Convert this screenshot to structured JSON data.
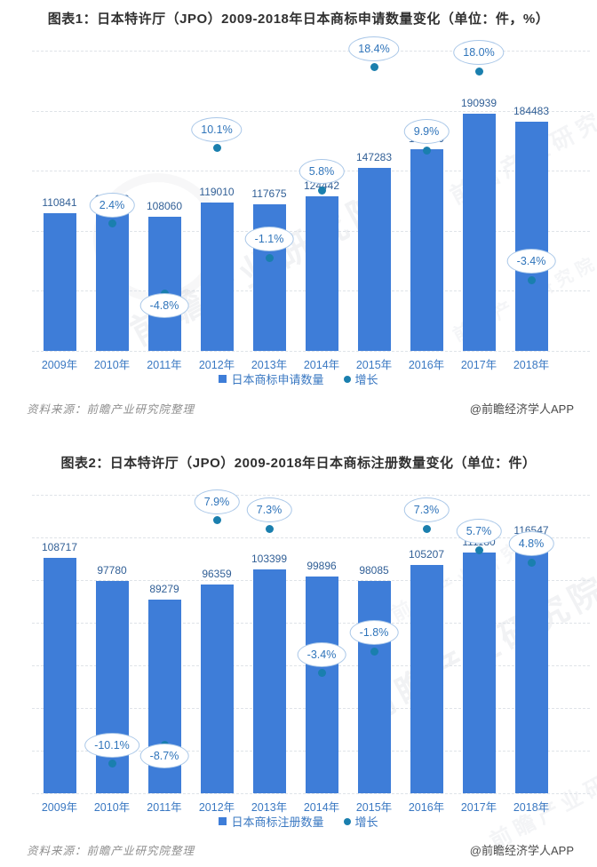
{
  "watermark": {
    "text": "前瞻产业研究院"
  },
  "colors": {
    "bar": "#3e7dd8",
    "growth_dot": "#1a7fae",
    "bubble_border": "#a9c7e8",
    "bubble_text": "#2f74ba",
    "value_label": "#315f96",
    "axis_label": "#3a78c2",
    "gridline": "#dfe3e8",
    "title": "#303030"
  },
  "chart_data": [
    {
      "type": "bar",
      "title": "图表1：日本特许厅（JPO）2009-2018年日本商标申请数量变化（单位：件，%）",
      "categories": [
        "2009年",
        "2010年",
        "2011年",
        "2012年",
        "2013年",
        "2014年",
        "2015年",
        "2016年",
        "2017年",
        "2018年"
      ],
      "series": [
        {
          "name": "日本商标申请数量",
          "type": "bar",
          "unit": "件",
          "values": [
            110841,
            113519,
            108060,
            119010,
            117675,
            124442,
            147283,
            161859,
            190939,
            184483
          ]
        },
        {
          "name": "增长",
          "type": "scatter",
          "unit": "%",
          "values": [
            null,
            2.4,
            -4.8,
            10.1,
            -1.1,
            5.8,
            18.4,
            9.9,
            18.0,
            -3.4
          ],
          "labels": [
            "",
            "2.4%",
            "-4.8%",
            "10.1%",
            "-1.1%",
            "5.8%",
            "18.4%",
            "9.9%",
            "18.0%",
            "-3.4%"
          ]
        }
      ],
      "grid": true,
      "legend_position": "bottom",
      "value_axis_labels_visible": false,
      "label_below_dot_indices": [
        2
      ],
      "source": "资料来源：前瞻产业研究院整理",
      "credit": "@前瞻经济学人APP"
    },
    {
      "type": "bar",
      "title": "图表2：日本特许厅（JPO）2009-2018年日本商标注册数量变化（单位：件）",
      "categories": [
        "2009年",
        "2010年",
        "2011年",
        "2012年",
        "2013年",
        "2014年",
        "2015年",
        "2016年",
        "2017年",
        "2018年"
      ],
      "series": [
        {
          "name": "日本商标注册数量",
          "type": "bar",
          "unit": "件",
          "values": [
            108717,
            97780,
            89279,
            96359,
            103399,
            99896,
            98085,
            105207,
            111180,
            116547
          ]
        },
        {
          "name": "增长",
          "type": "scatter",
          "unit": "%",
          "values": [
            null,
            -10.1,
            -8.7,
            7.9,
            7.3,
            -3.4,
            -1.8,
            7.3,
            5.7,
            4.8
          ],
          "labels": [
            "",
            "-10.1%",
            "-8.7%",
            "7.9%",
            "7.3%",
            "-3.4%",
            "-1.8%",
            "7.3%",
            "5.7%",
            "4.8%"
          ]
        }
      ],
      "grid": true,
      "legend_position": "bottom",
      "value_axis_labels_visible": false,
      "label_below_dot_indices": [
        2
      ],
      "source": "资料来源：前瞻产业研究院整理",
      "credit": "@前瞻经济学人APP"
    }
  ]
}
